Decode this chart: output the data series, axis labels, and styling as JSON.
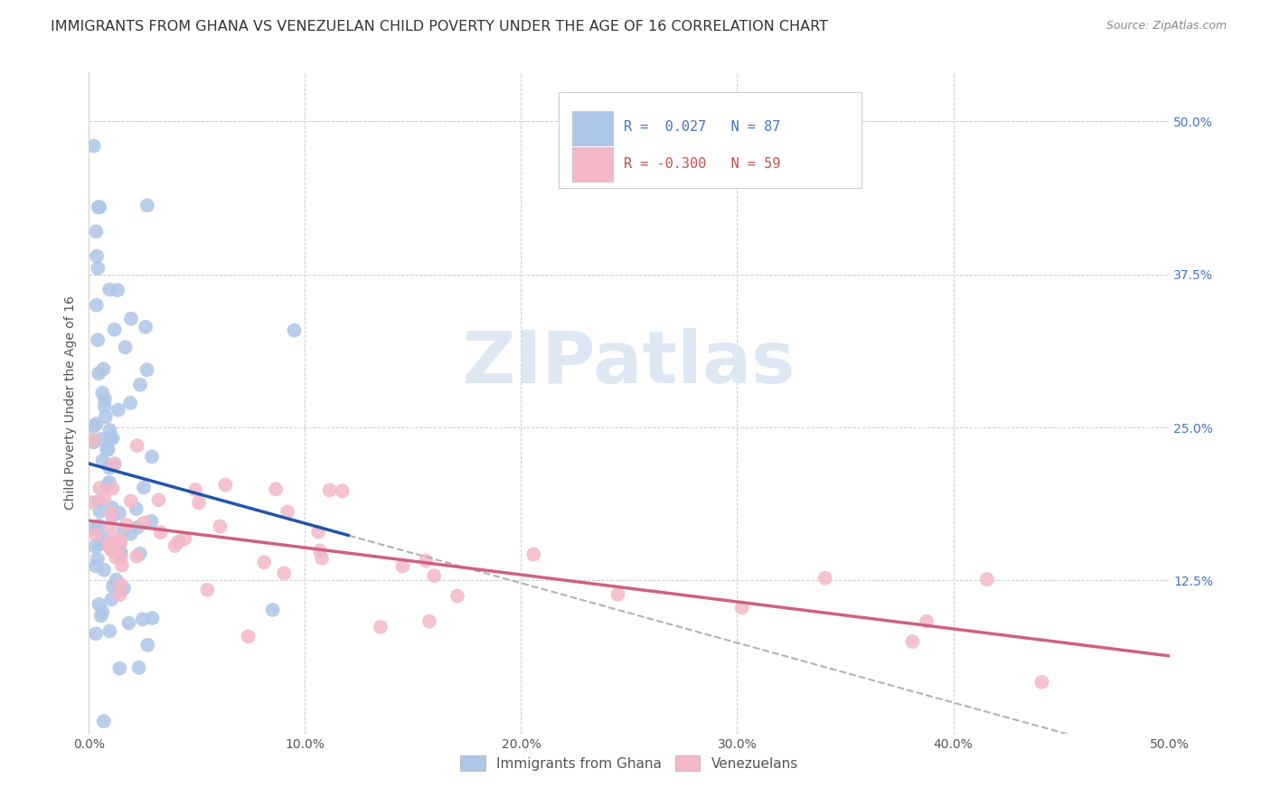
{
  "title": "IMMIGRANTS FROM GHANA VS VENEZUELAN CHILD POVERTY UNDER THE AGE OF 16 CORRELATION CHART",
  "source": "Source: ZipAtlas.com",
  "ylabel": "Child Poverty Under the Age of 16",
  "ytick_labels": [
    "50.0%",
    "37.5%",
    "25.0%",
    "12.5%"
  ],
  "ytick_values": [
    0.5,
    0.375,
    0.25,
    0.125
  ],
  "xlim": [
    0.0,
    0.5
  ],
  "ylim": [
    0.0,
    0.54
  ],
  "legend_entries": [
    {
      "label": "Immigrants from Ghana",
      "R": " 0.027",
      "N": "87",
      "color": "#aec6e8",
      "text_color": "#4472c4"
    },
    {
      "label": "Venezuelans",
      "R": "-0.300",
      "N": "59",
      "color": "#f4b8c8",
      "text_color": "#c0504d"
    }
  ],
  "ghana_scatter_color": "#aec6e8",
  "venezuela_scatter_color": "#f4b8c8",
  "ghana_line_color": "#2255aa",
  "venezuela_line_color": "#d06080",
  "dashed_line_color": "#aaaaaa",
  "watermark_text": "ZIPatlas",
  "watermark_color": "#dde8f4",
  "background_color": "#ffffff",
  "grid_color": "#cccccc",
  "title_fontsize": 11.5,
  "ylabel_fontsize": 10,
  "tick_fontsize": 10,
  "source_fontsize": 9,
  "legend_fontsize": 11
}
